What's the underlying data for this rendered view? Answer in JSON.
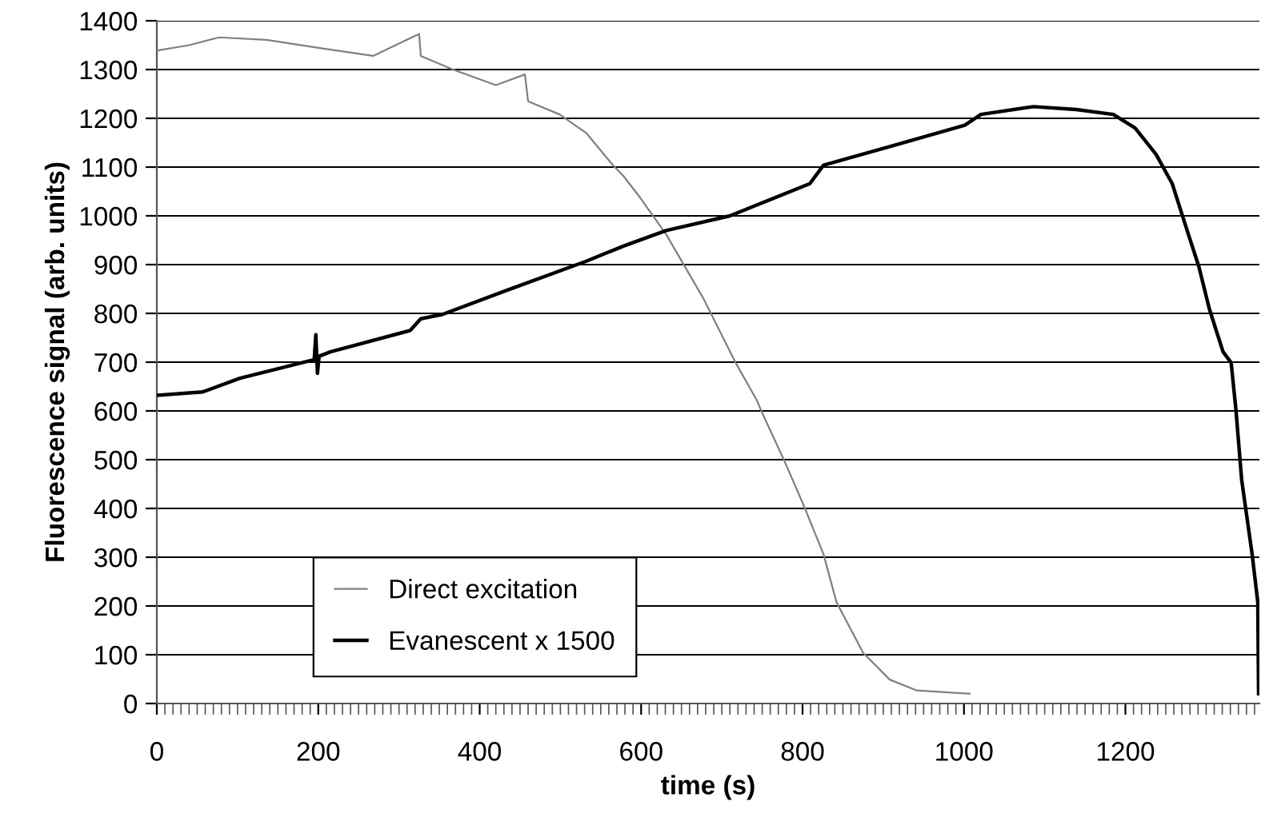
{
  "chart_data": {
    "type": "line",
    "xlabel": "time (s)",
    "ylabel": "Fluorescence signal (arb. units)",
    "xlim": [
      0,
      1366
    ],
    "xticks": [
      0,
      200,
      400,
      600,
      800,
      1000,
      1200
    ],
    "ylim": [
      0,
      1400
    ],
    "yticks": [
      0,
      100,
      200,
      300,
      400,
      500,
      600,
      700,
      800,
      900,
      1000,
      1100,
      1200,
      1300,
      1400
    ],
    "grid": "y",
    "legend": "bottom left",
    "marker": "none",
    "line_style": "solid",
    "series": [
      {
        "name": "Direct excitation",
        "color": "#808080",
        "x": [
          1,
          40,
          77,
          136,
          202,
          268,
          325,
          327,
          367,
          420,
          456,
          460,
          499,
          532,
          565,
          578,
          598,
          631,
          677,
          717,
          743,
          750,
          776,
          802,
          826,
          842,
          875,
          908,
          941,
          1007
        ],
        "values": [
          1339,
          1350,
          1366,
          1361,
          1344,
          1328,
          1373,
          1328,
          1300,
          1268,
          1290,
          1235,
          1208,
          1170,
          1104,
          1082,
          1039,
          962,
          831,
          699,
          623,
          596,
          503,
          404,
          306,
          208,
          104,
          49,
          27,
          20
        ]
      },
      {
        "name": "Evanescent x 1500",
        "color": "#000000",
        "x": [
          1,
          57,
          103,
          195,
          197,
          199,
          201,
          215,
          314,
          327,
          354,
          433,
          532,
          578,
          631,
          710,
          809,
          826,
          908,
          1001,
          1021,
          1086,
          1139,
          1185,
          1212,
          1238,
          1258,
          1278,
          1291,
          1304,
          1321,
          1331,
          1337,
          1344,
          1357,
          1364,
          1365
        ],
        "values": [
          632,
          639,
          667,
          705,
          756,
          677,
          712,
          721,
          765,
          789,
          798,
          847,
          907,
          938,
          970,
          1000,
          1066,
          1104,
          1142,
          1186,
          1208,
          1224,
          1218,
          1208,
          1180,
          1126,
          1066,
          962,
          896,
          809,
          721,
          699,
          601,
          459,
          306,
          208,
          20
        ]
      }
    ]
  }
}
